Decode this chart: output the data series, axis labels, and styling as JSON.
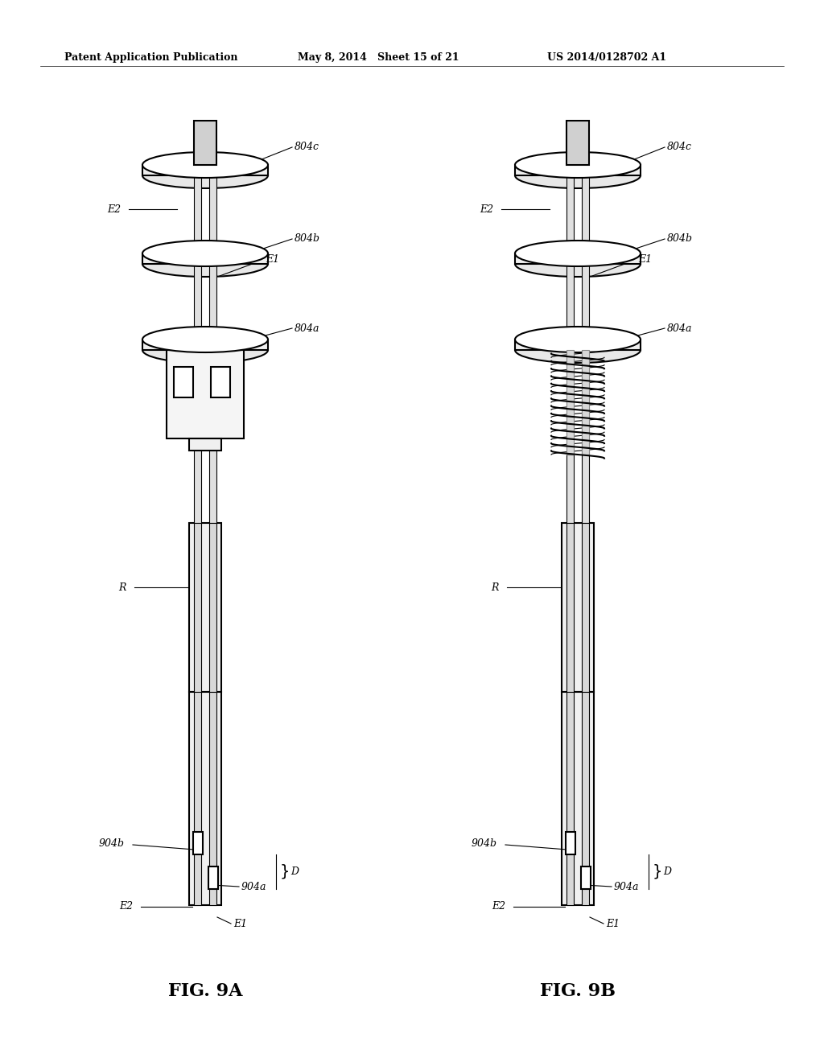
{
  "background_color": "#ffffff",
  "header_left": "Patent Application Publication",
  "header_mid": "May 8, 2014   Sheet 15 of 21",
  "header_right": "US 2014/0128702 A1",
  "fig_label_A": "FIG. 9A",
  "fig_label_B": "FIG. 9B",
  "label_color": "#000000",
  "line_color": "#000000",
  "line_width": 1.5,
  "thin_line": 0.8
}
